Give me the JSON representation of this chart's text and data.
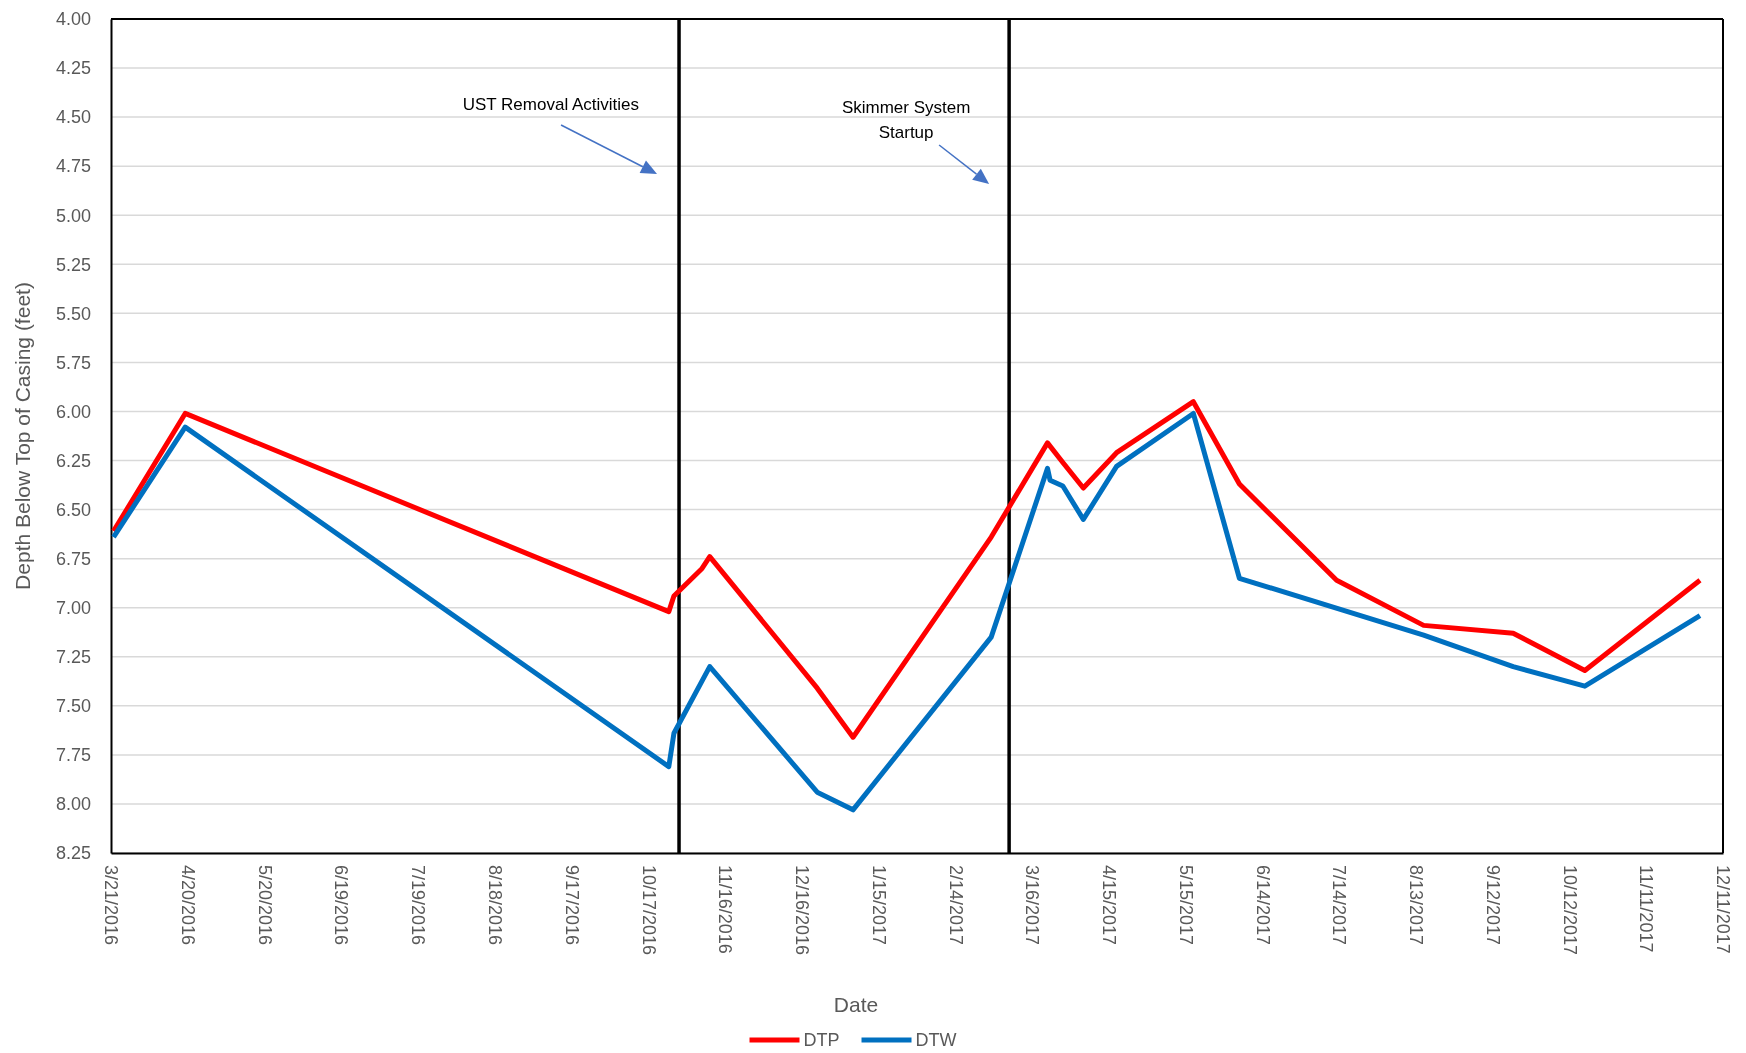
{
  "chart_data": {
    "type": "line",
    "xlabel": "Date",
    "ylabel": "Depth Below Top of Casing (feet)",
    "xlim": [
      "2016-03-21",
      "2017-12-11"
    ],
    "xticks": [
      {
        "value": "2016-03-21",
        "label": "3/21/2016"
      },
      {
        "value": "2016-04-20",
        "label": "4/20/2016"
      },
      {
        "value": "2016-05-20",
        "label": "5/20/2016"
      },
      {
        "value": "2016-06-19",
        "label": "6/19/2016"
      },
      {
        "value": "2016-07-19",
        "label": "7/19/2016"
      },
      {
        "value": "2016-08-18",
        "label": "8/18/2016"
      },
      {
        "value": "2016-09-17",
        "label": "9/17/2016"
      },
      {
        "value": "2016-10-17",
        "label": "10/17/2016"
      },
      {
        "value": "2016-11-16",
        "label": "11/16/2016"
      },
      {
        "value": "2016-12-16",
        "label": "12/16/2016"
      },
      {
        "value": "2017-01-15",
        "label": "1/15/2017"
      },
      {
        "value": "2017-02-14",
        "label": "2/14/2017"
      },
      {
        "value": "2017-03-16",
        "label": "3/16/2017"
      },
      {
        "value": "2017-04-15",
        "label": "4/15/2017"
      },
      {
        "value": "2017-05-15",
        "label": "5/15/2017"
      },
      {
        "value": "2017-06-14",
        "label": "6/14/2017"
      },
      {
        "value": "2017-07-14",
        "label": "7/14/2017"
      },
      {
        "value": "2017-08-13",
        "label": "8/13/2017"
      },
      {
        "value": "2017-09-12",
        "label": "9/12/2017"
      },
      {
        "value": "2017-10-12",
        "label": "10/12/2017"
      },
      {
        "value": "2017-11-11",
        "label": "11/11/2017"
      },
      {
        "value": "2017-12-11",
        "label": "12/11/2017"
      }
    ],
    "ylim": [
      8.25,
      4.0
    ],
    "yticks": [
      {
        "value": 4.0,
        "label": "4.00"
      },
      {
        "value": 4.25,
        "label": "4.25"
      },
      {
        "value": 4.5,
        "label": "4.50"
      },
      {
        "value": 4.75,
        "label": "4.75"
      },
      {
        "value": 5.0,
        "label": "5.00"
      },
      {
        "value": 5.25,
        "label": "5.25"
      },
      {
        "value": 5.5,
        "label": "5.50"
      },
      {
        "value": 5.75,
        "label": "5.75"
      },
      {
        "value": 6.0,
        "label": "6.00"
      },
      {
        "value": 6.25,
        "label": "6.25"
      },
      {
        "value": 6.5,
        "label": "6.50"
      },
      {
        "value": 6.75,
        "label": "6.75"
      },
      {
        "value": 7.0,
        "label": "7.00"
      },
      {
        "value": 7.25,
        "label": "7.25"
      },
      {
        "value": 7.5,
        "label": "7.50"
      },
      {
        "value": 7.75,
        "label": "7.75"
      },
      {
        "value": 8.0,
        "label": "8.00"
      },
      {
        "value": 8.25,
        "label": "8.25"
      }
    ],
    "grid": "y",
    "legend": "bottom",
    "marker": "none",
    "line_style": "solid",
    "series": [
      {
        "name": "DTP",
        "color": "#ff0000",
        "x": [
          "2016-03-22",
          "2016-04-19",
          "2016-10-25",
          "2016-10-27",
          "2016-11-07",
          "2016-11-10",
          "2016-12-22",
          "2017-01-05",
          "2017-02-28",
          "2017-03-22",
          "2017-03-28",
          "2017-04-05",
          "2017-04-18",
          "2017-05-18",
          "2017-06-05",
          "2017-07-13",
          "2017-08-16",
          "2017-09-20",
          "2017-10-18",
          "2017-12-02"
        ],
        "values": [
          6.61,
          6.01,
          7.02,
          6.94,
          6.8,
          6.74,
          7.41,
          7.66,
          6.64,
          6.16,
          6.26,
          6.39,
          6.21,
          5.95,
          6.37,
          6.86,
          7.09,
          7.13,
          7.32,
          6.86
        ]
      },
      {
        "name": "DTW",
        "color": "#0070c0",
        "x": [
          "2016-03-22",
          "2016-04-19",
          "2016-10-25",
          "2016-10-27",
          "2016-11-10",
          "2016-12-22",
          "2017-01-05",
          "2017-02-28",
          "2017-03-22",
          "2017-03-23",
          "2017-03-28",
          "2017-04-05",
          "2017-04-18",
          "2017-05-18",
          "2017-06-05",
          "2017-08-16",
          "2017-09-20",
          "2017-10-18",
          "2017-12-02"
        ],
        "values": [
          6.64,
          6.08,
          7.81,
          7.64,
          7.3,
          7.94,
          8.03,
          7.15,
          6.29,
          6.35,
          6.38,
          6.55,
          6.28,
          6.01,
          6.85,
          7.14,
          7.3,
          7.4,
          7.04
        ]
      }
    ],
    "ref_lines": [
      {
        "axis": "x",
        "value": "2016-10-29",
        "label": "UST Removal Activities",
        "color": "#000000"
      },
      {
        "axis": "x",
        "value": "2017-03-07",
        "label": "Skimmer System Startup",
        "color": "#000000"
      }
    ]
  }
}
